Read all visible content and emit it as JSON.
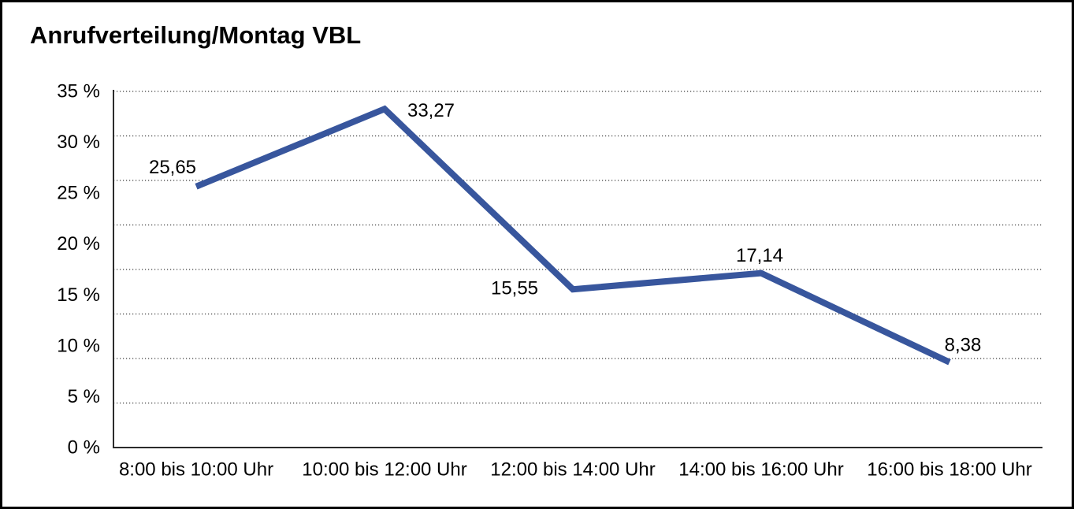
{
  "title": "Anrufverteilung/Montag VBL",
  "chart_data": {
    "type": "line",
    "title": "Anrufverteilung/Montag VBL",
    "categories": [
      "8:00 bis 10:00 Uhr",
      "10:00 bis 12:00 Uhr",
      "12:00 bis 14:00 Uhr",
      "14:00 bis 16:00 Uhr",
      "16:00 bis 18:00 Uhr"
    ],
    "series": [
      {
        "name": "Anrufverteilung Montag VBL",
        "values": [
          25.65,
          33.27,
          15.55,
          17.14,
          8.38
        ],
        "value_labels": [
          "25,65",
          "33,27",
          "15,55",
          "17,14",
          "8,38"
        ],
        "color": "#38569D"
      }
    ],
    "xlabel": "",
    "ylabel": "",
    "y_axis": {
      "min": 0,
      "max": 35,
      "tick_step": 5,
      "tick_labels": [
        "0 %",
        "5 %",
        "10 %",
        "15 %",
        "20 %",
        "25 %",
        "30 %",
        "35 %"
      ]
    },
    "ylim": [
      0,
      35
    ],
    "gridlines": {
      "horizontal_divisions": 8,
      "style": "dotted"
    },
    "legend": {
      "visible": false
    },
    "data_labels_visible": true
  }
}
